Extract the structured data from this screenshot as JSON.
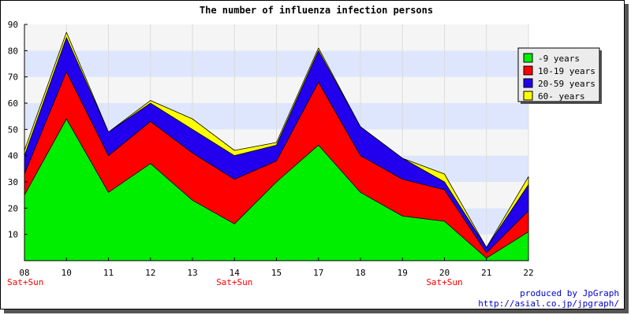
{
  "chart_data": {
    "type": "area",
    "stacked": true,
    "title": "The number of influenza infection persons",
    "x": [
      "08",
      "10",
      "11",
      "12",
      "13",
      "14",
      "15",
      "17",
      "18",
      "19",
      "20",
      "21",
      "22"
    ],
    "x_annotations": [
      {
        "x": "08",
        "text": "Sat+Sun"
      },
      {
        "x": "14",
        "text": "Sat+Sun"
      },
      {
        "x": "20",
        "text": "Sat+Sun"
      }
    ],
    "ylim": [
      0,
      90
    ],
    "yticks": [
      10,
      20,
      30,
      40,
      50,
      60,
      70,
      80,
      90
    ],
    "grid": true,
    "legend_position": "top-right",
    "series": [
      {
        "name": "-9 years",
        "color": "#00ee00",
        "values": [
          25,
          54,
          26,
          37,
          23,
          14,
          30,
          44,
          26,
          17,
          15,
          1,
          11
        ]
      },
      {
        "name": "10-19 years",
        "color": "#ff0000",
        "values": [
          8,
          18,
          14,
          16,
          18,
          17,
          8,
          24,
          14,
          14,
          12,
          2,
          8
        ]
      },
      {
        "name": "20-59 years",
        "color": "#2200ee",
        "values": [
          7,
          13,
          9,
          7,
          9,
          9,
          6,
          12,
          11,
          8,
          3,
          2,
          10
        ]
      },
      {
        "name": "60- years",
        "color": "#ffff00",
        "values": [
          2,
          2,
          0,
          1,
          4,
          2,
          1,
          1,
          0,
          0,
          3,
          0,
          3
        ]
      }
    ]
  },
  "footer": {
    "credit_line1": "produced by JpGraph",
    "credit_line2": "http://asial.co.jp/jpgraph/"
  }
}
